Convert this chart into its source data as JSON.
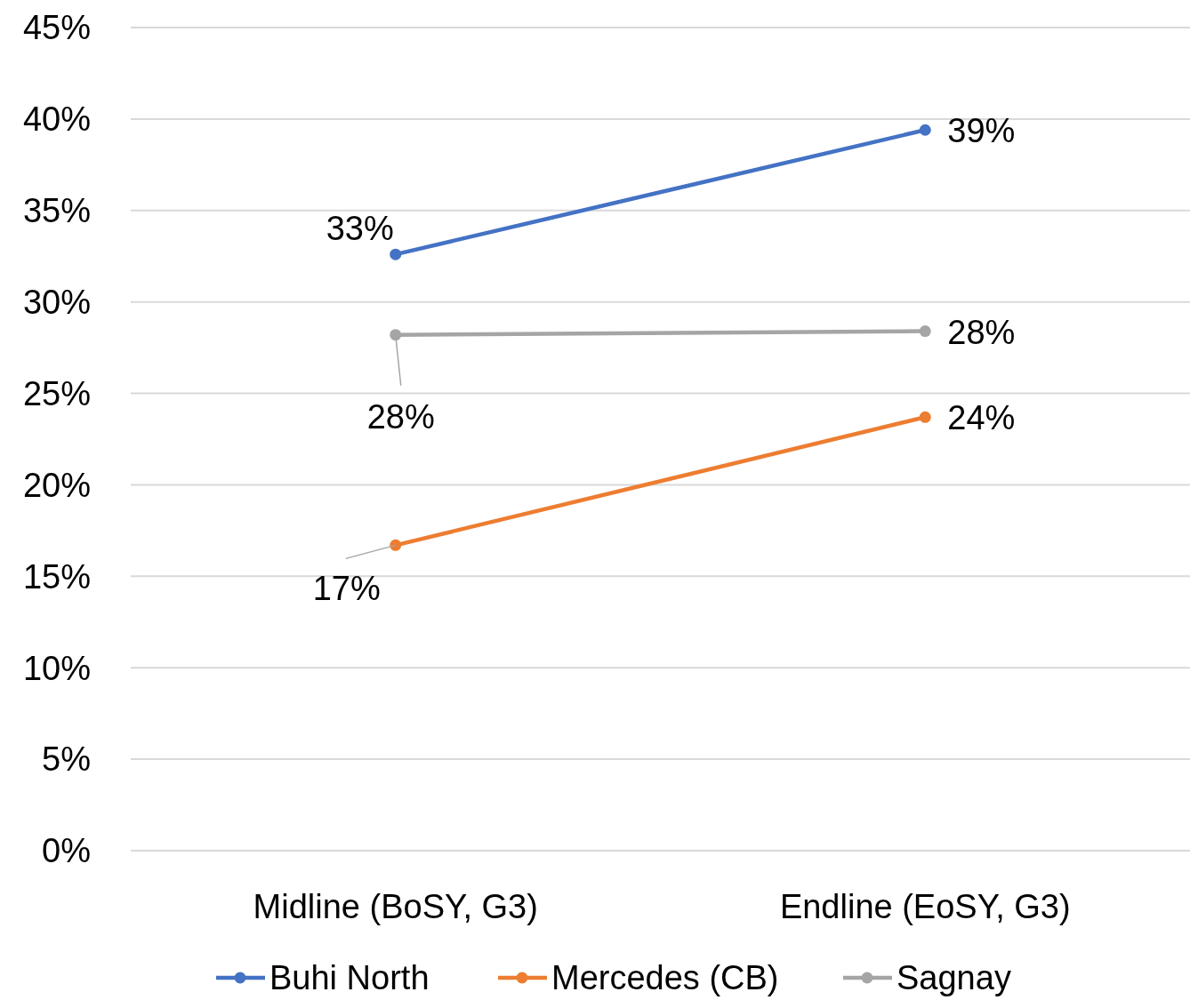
{
  "chart_data": {
    "type": "line",
    "categories": [
      "Midline (BoSY, G3)",
      "Endline (EoSY, G3)"
    ],
    "series": [
      {
        "name": "Buhi North",
        "color": "#4472c4",
        "values": [
          32.6,
          39.4
        ],
        "value_labels": [
          "33%",
          "39%"
        ]
      },
      {
        "name": "Mercedes (CB)",
        "color": "#ed7d31",
        "values": [
          16.7,
          23.7
        ],
        "value_labels": [
          "17%",
          "24%"
        ]
      },
      {
        "name": "Sagnay",
        "color": "#a5a5a5",
        "values": [
          28.2,
          28.4
        ],
        "value_labels": [
          "28%",
          "28%"
        ]
      }
    ],
    "ylim": [
      0,
      45
    ],
    "yticks": [
      {
        "value": 0,
        "label": "0%"
      },
      {
        "value": 5,
        "label": "5%"
      },
      {
        "value": 10,
        "label": "10%"
      },
      {
        "value": 15,
        "label": "15%"
      },
      {
        "value": 20,
        "label": "20%"
      },
      {
        "value": 25,
        "label": "25%"
      },
      {
        "value": 30,
        "label": "30%"
      },
      {
        "value": 35,
        "label": "35%"
      },
      {
        "value": 40,
        "label": "40%"
      },
      {
        "value": 45,
        "label": "45%"
      }
    ],
    "grid": "y",
    "legend": "bottom",
    "marker": "circle",
    "line_style": "solid"
  }
}
